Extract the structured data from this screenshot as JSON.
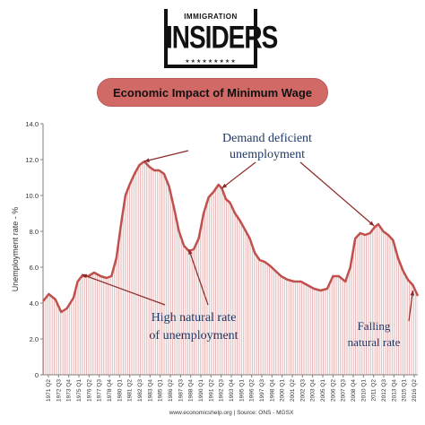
{
  "logo": {
    "top_text": "IMMIGRATION",
    "main_text": "INSIDERS",
    "stars": "★★★★★★★★★"
  },
  "banner": {
    "title": "Economic Impact of Minimum Wage"
  },
  "footer": {
    "source": "www.economicshelp.org | Source: ONS - MGSX"
  },
  "chart_data": {
    "type": "line",
    "ylabel": "Unemployment rate - %",
    "ylim": [
      0,
      14
    ],
    "yticks": [
      "0",
      "2.0",
      "4.0",
      "6.0",
      "8.0",
      "10.0",
      "12.0",
      "14.0"
    ],
    "grid": "vertical hatching under line",
    "line_color": "#c0504d",
    "fill_color": "#f2c4c4",
    "xticks": [
      "1971 Q2",
      "1972 Q3",
      "1973 Q4",
      "1975 Q1",
      "1976 Q2",
      "1977 Q3",
      "1978 Q4",
      "1980 Q1",
      "1981 Q2",
      "1982 Q3",
      "1983 Q4",
      "1985 Q1",
      "1986 Q2",
      "1987 Q3",
      "1988 Q4",
      "1990 Q1",
      "1991 Q2",
      "1992 Q3",
      "1993 Q4",
      "1995 Q1",
      "1996 Q2",
      "1997 Q3",
      "1998 Q4",
      "2000 Q1",
      "2001 Q2",
      "2002 Q3",
      "2003 Q4",
      "2005 Q1",
      "2006 Q2",
      "2007 Q3",
      "2008 Q4",
      "2010 Q1",
      "2011 Q2",
      "2012 Q3",
      "2013 Q4",
      "2015 Q1",
      "2016 Q2"
    ],
    "x": [
      1971.3,
      1972.0,
      1972.8,
      1973.5,
      1974.2,
      1975.0,
      1975.5,
      1976.0,
      1976.8,
      1977.5,
      1978.3,
      1979.0,
      1979.6,
      1980.2,
      1980.8,
      1981.3,
      1981.8,
      1982.4,
      1983.0,
      1983.6,
      1984.2,
      1984.8,
      1985.4,
      1986.0,
      1986.6,
      1987.2,
      1987.8,
      1988.4,
      1989.0,
      1989.6,
      1990.2,
      1990.8,
      1991.4,
      1992.0,
      1992.6,
      1993.0,
      1993.5,
      1994.0,
      1994.6,
      1995.2,
      1995.8,
      1996.4,
      1997.0,
      1997.6,
      1998.2,
      1998.8,
      1999.5,
      2000.2,
      2001.0,
      2001.8,
      2002.6,
      2003.4,
      2004.2,
      2005.0,
      2005.8,
      2006.5,
      2007.2,
      2008.0,
      2008.6,
      2009.2,
      2009.8,
      2010.4,
      2011.0,
      2011.5,
      2012.0,
      2012.6,
      2013.2,
      2013.8,
      2014.4,
      2015.0,
      2015.6,
      2016.2,
      2016.8
    ],
    "values": [
      4.1,
      4.5,
      4.2,
      3.5,
      3.7,
      4.3,
      5.2,
      5.5,
      5.5,
      5.7,
      5.5,
      5.4,
      5.5,
      6.5,
      8.5,
      10.0,
      10.6,
      11.2,
      11.7,
      11.9,
      11.6,
      11.4,
      11.4,
      11.2,
      10.5,
      9.3,
      8.0,
      7.2,
      6.9,
      7.0,
      7.6,
      9.0,
      9.9,
      10.2,
      10.6,
      10.4,
      9.8,
      9.6,
      9.0,
      8.6,
      8.1,
      7.6,
      6.8,
      6.4,
      6.3,
      6.1,
      5.8,
      5.5,
      5.3,
      5.2,
      5.2,
      5.0,
      4.8,
      4.7,
      4.8,
      5.5,
      5.5,
      5.2,
      6.0,
      7.6,
      7.9,
      7.8,
      7.9,
      8.2,
      8.4,
      8.0,
      7.8,
      7.5,
      6.5,
      5.8,
      5.3,
      5.0,
      4.4
    ],
    "annotations": [
      {
        "text_lines": [
          "Demand deficient",
          "unemployment"
        ],
        "points_to": [
          [
            1983.6,
            11.9
          ],
          [
            1993.0,
            10.4
          ],
          [
            2011.5,
            8.3
          ]
        ]
      },
      {
        "text_lines": [
          "High natural rate",
          "of unemployment"
        ],
        "points_to": [
          [
            1976.0,
            5.6
          ],
          [
            1989.0,
            7.0
          ]
        ]
      },
      {
        "text_lines": [
          "Falling",
          "natural rate"
        ],
        "points_to": [
          [
            2016.2,
            4.7
          ]
        ]
      }
    ]
  }
}
